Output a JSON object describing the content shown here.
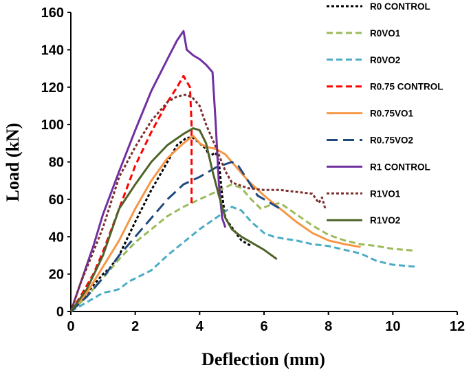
{
  "chart_data": {
    "type": "line",
    "title": "",
    "xlabel": "Deflection (mm)",
    "ylabel": "Load (kN)",
    "xlim": [
      0,
      12
    ],
    "ylim": [
      0,
      160
    ],
    "xticks": [
      0,
      2,
      4,
      6,
      8,
      10,
      12
    ],
    "yticks": [
      0,
      20,
      40,
      60,
      80,
      100,
      120,
      140,
      160
    ],
    "grid": false,
    "legend_position": "right",
    "series": [
      {
        "name": "R0 CONTROL",
        "color": "#000000",
        "dash": "dotted",
        "points": [
          [
            0,
            0
          ],
          [
            0.3,
            5
          ],
          [
            0.6,
            12
          ],
          [
            1.0,
            20
          ],
          [
            1.2,
            23
          ],
          [
            1.5,
            30
          ],
          [
            2.0,
            48
          ],
          [
            2.5,
            65
          ],
          [
            3.0,
            80
          ],
          [
            3.3,
            89
          ],
          [
            3.6,
            93
          ],
          [
            3.8,
            93
          ],
          [
            4.0,
            90
          ],
          [
            4.2,
            87
          ],
          [
            4.3,
            83
          ],
          [
            4.5,
            85
          ],
          [
            4.6,
            80
          ],
          [
            4.7,
            62
          ],
          [
            4.8,
            50
          ],
          [
            5.0,
            45
          ],
          [
            5.3,
            38
          ],
          [
            5.6,
            35
          ]
        ]
      },
      {
        "name": "R0VO1",
        "color": "#9BBB59",
        "dash": "dashed",
        "points": [
          [
            0,
            0
          ],
          [
            0.5,
            8
          ],
          [
            1.0,
            18
          ],
          [
            1.5,
            28
          ],
          [
            2.0,
            37
          ],
          [
            2.5,
            44
          ],
          [
            3.0,
            51
          ],
          [
            3.5,
            56
          ],
          [
            4.0,
            60
          ],
          [
            4.5,
            64
          ],
          [
            5.0,
            68
          ],
          [
            5.3,
            66
          ],
          [
            5.6,
            60
          ],
          [
            5.9,
            55
          ],
          [
            6.2,
            57
          ],
          [
            6.5,
            58
          ],
          [
            7.0,
            52
          ],
          [
            7.5,
            46
          ],
          [
            8.0,
            41
          ],
          [
            8.5,
            38
          ],
          [
            9.0,
            36
          ],
          [
            9.5,
            35
          ],
          [
            10.0,
            33.5
          ],
          [
            10.7,
            32.5
          ]
        ]
      },
      {
        "name": "R0VO2",
        "color": "#4BACC6",
        "dash": "dashed",
        "points": [
          [
            0,
            0
          ],
          [
            0.5,
            5
          ],
          [
            1.0,
            10
          ],
          [
            1.3,
            11
          ],
          [
            1.5,
            12
          ],
          [
            1.8,
            16
          ],
          [
            2.5,
            22
          ],
          [
            3.0,
            30
          ],
          [
            3.5,
            37
          ],
          [
            4.0,
            44
          ],
          [
            4.5,
            50
          ],
          [
            5.0,
            56
          ],
          [
            5.3,
            54
          ],
          [
            5.6,
            48
          ],
          [
            6.0,
            42
          ],
          [
            6.3,
            40
          ],
          [
            6.6,
            39
          ],
          [
            7.0,
            38
          ],
          [
            7.5,
            36
          ],
          [
            8.0,
            35
          ],
          [
            8.5,
            33
          ],
          [
            9.0,
            31
          ],
          [
            9.5,
            27
          ],
          [
            10.0,
            25
          ],
          [
            10.7,
            24
          ]
        ]
      },
      {
        "name": "R0.75 CONTROL",
        "color": "#FF0000",
        "dash": "dashed",
        "points": [
          [
            0,
            0
          ],
          [
            0.3,
            8
          ],
          [
            0.7,
            20
          ],
          [
            1.0,
            32
          ],
          [
            1.5,
            55
          ],
          [
            2.0,
            78
          ],
          [
            2.5,
            96
          ],
          [
            3.0,
            112
          ],
          [
            3.3,
            120
          ],
          [
            3.5,
            126
          ],
          [
            3.7,
            120
          ],
          [
            3.75,
            100
          ],
          [
            3.75,
            58
          ]
        ]
      },
      {
        "name": "R0.75VO1",
        "color": "#F79646",
        "dash": "solid",
        "points": [
          [
            0,
            0
          ],
          [
            0.5,
            10
          ],
          [
            1.0,
            24
          ],
          [
            1.5,
            38
          ],
          [
            2.0,
            55
          ],
          [
            2.5,
            70
          ],
          [
            3.0,
            82
          ],
          [
            3.5,
            90
          ],
          [
            3.8,
            94
          ],
          [
            4.0,
            90
          ],
          [
            4.2,
            88
          ],
          [
            4.5,
            87
          ],
          [
            4.8,
            84
          ],
          [
            5.0,
            80
          ],
          [
            5.5,
            70
          ],
          [
            6.0,
            62
          ],
          [
            6.5,
            55
          ],
          [
            7.0,
            48
          ],
          [
            7.5,
            42
          ],
          [
            8.0,
            38
          ],
          [
            8.5,
            36
          ],
          [
            9.0,
            34.5
          ]
        ]
      },
      {
        "name": "R0.75VO2",
        "color": "#1F497D",
        "dash": "longdash",
        "points": [
          [
            0,
            0
          ],
          [
            0.5,
            8
          ],
          [
            1.0,
            18
          ],
          [
            1.5,
            30
          ],
          [
            2.0,
            40
          ],
          [
            2.5,
            50
          ],
          [
            3.0,
            60
          ],
          [
            3.5,
            68
          ],
          [
            4.0,
            72
          ],
          [
            4.5,
            77
          ],
          [
            5.0,
            80
          ],
          [
            5.2,
            78
          ],
          [
            5.5,
            70
          ],
          [
            5.8,
            62
          ],
          [
            6.2,
            58
          ],
          [
            6.5,
            55
          ]
        ]
      },
      {
        "name": "R1 CONTROL",
        "color": "#7030A0",
        "dash": "solid",
        "points": [
          [
            0,
            0
          ],
          [
            0.3,
            15
          ],
          [
            0.7,
            35
          ],
          [
            1.0,
            52
          ],
          [
            1.5,
            75
          ],
          [
            2.0,
            97
          ],
          [
            2.5,
            118
          ],
          [
            3.0,
            135
          ],
          [
            3.3,
            145
          ],
          [
            3.5,
            150
          ],
          [
            3.6,
            140
          ],
          [
            3.8,
            137
          ],
          [
            4.0,
            135
          ],
          [
            4.2,
            132
          ],
          [
            4.4,
            128
          ],
          [
            4.5,
            100
          ],
          [
            4.6,
            68
          ],
          [
            4.7,
            50
          ],
          [
            4.8,
            45
          ]
        ]
      },
      {
        "name": "R1VO1",
        "color": "#7B2F2F",
        "dash": "dotted",
        "points": [
          [
            0,
            0
          ],
          [
            0.3,
            15
          ],
          [
            0.7,
            32
          ],
          [
            1.0,
            45
          ],
          [
            1.5,
            72
          ],
          [
            2.0,
            88
          ],
          [
            2.5,
            102
          ],
          [
            3.0,
            112
          ],
          [
            3.3,
            115
          ],
          [
            3.6,
            116
          ],
          [
            3.8,
            114
          ],
          [
            4.0,
            110
          ],
          [
            4.2,
            100
          ],
          [
            4.5,
            88
          ],
          [
            4.8,
            75
          ],
          [
            5.0,
            69
          ],
          [
            5.5,
            66
          ],
          [
            6.0,
            65
          ],
          [
            6.5,
            65
          ],
          [
            7.0,
            64
          ],
          [
            7.5,
            63
          ],
          [
            7.7,
            58
          ],
          [
            7.8,
            61
          ],
          [
            7.9,
            55
          ]
        ]
      },
      {
        "name": "R1VO2",
        "color": "#4F6228",
        "dash": "solid",
        "points": [
          [
            0,
            0
          ],
          [
            0.5,
            12
          ],
          [
            1.0,
            30
          ],
          [
            1.5,
            55
          ],
          [
            2.0,
            68
          ],
          [
            2.5,
            80
          ],
          [
            3.0,
            89
          ],
          [
            3.5,
            95
          ],
          [
            3.8,
            98
          ],
          [
            4.0,
            97
          ],
          [
            4.2,
            90
          ],
          [
            4.4,
            75
          ],
          [
            4.6,
            62
          ],
          [
            4.8,
            50
          ],
          [
            5.0,
            44
          ],
          [
            5.3,
            40
          ],
          [
            5.6,
            37
          ],
          [
            6.0,
            33
          ],
          [
            6.4,
            28
          ]
        ]
      }
    ]
  }
}
